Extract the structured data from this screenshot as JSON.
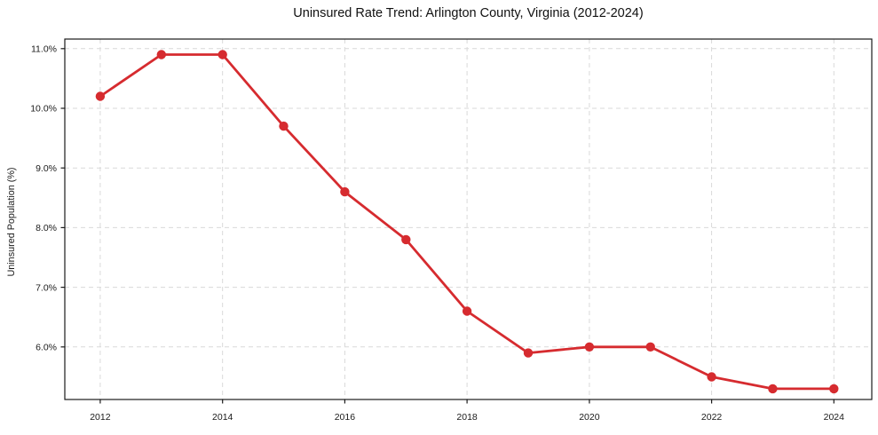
{
  "chart_data": {
    "type": "line",
    "title": "Uninsured Rate Trend: Arlington County, Virginia (2012-2024)",
    "xlabel": "",
    "ylabel": "Uninsured Population (%)",
    "x": [
      2012,
      2013,
      2014,
      2015,
      2016,
      2017,
      2018,
      2019,
      2020,
      2021,
      2022,
      2023,
      2024
    ],
    "series": [
      {
        "name": "Uninsured rate",
        "values": [
          10.2,
          10.9,
          10.9,
          9.7,
          8.6,
          7.8,
          6.6,
          5.9,
          6.0,
          6.0,
          5.5,
          5.3,
          5.3
        ],
        "color": "#d62b2f",
        "marker": "circle"
      }
    ],
    "xticks": [
      2012,
      2014,
      2016,
      2018,
      2020,
      2022,
      2024
    ],
    "xtick_labels": [
      "2012",
      "2014",
      "2016",
      "2018",
      "2020",
      "2022",
      "2024"
    ],
    "yticks": [
      6,
      7,
      8,
      9,
      10,
      11
    ],
    "ytick_labels": [
      "6.0%",
      "7.0%",
      "8.0%",
      "9.0%",
      "10.0%",
      "11.0%"
    ],
    "xlim": [
      2011.42,
      2024.62
    ],
    "ylim": [
      5.12,
      11.16
    ],
    "grid": "dashed",
    "legend": "none",
    "colors": {
      "line": "#d62b2f",
      "grid": "#d9d9d9",
      "axis": "#1a1a1a",
      "background": "#ffffff"
    }
  }
}
